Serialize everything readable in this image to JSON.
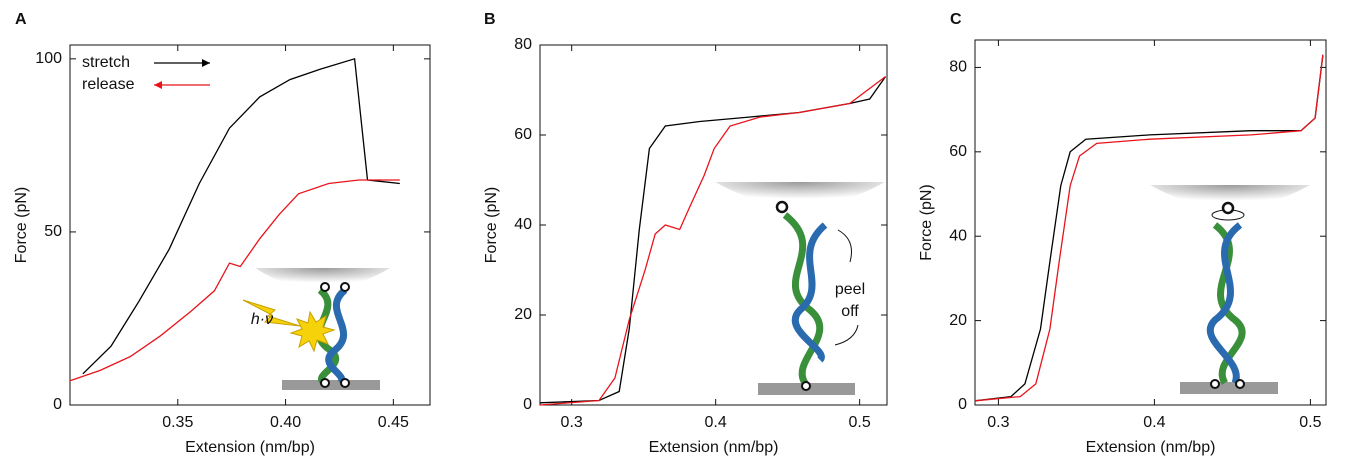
{
  "chart_data": [
    {
      "type": "line",
      "label": "A",
      "xlabel": "Extension (nm/bp)",
      "ylabel": "Force (pN)",
      "xlim": [
        0.3,
        0.467
      ],
      "ylim": [
        0,
        104
      ],
      "xticks": [
        0.35,
        {
          "value": 0.4,
          "label": "0.40"
        },
        0.45
      ],
      "yticks": [
        0,
        50,
        100
      ],
      "legend": "upper left",
      "annotations": [
        "h·ν"
      ],
      "series": [
        {
          "name": "stretch",
          "color": "#000000",
          "x": [
            0.306,
            0.319,
            0.332,
            0.346,
            0.36,
            0.374,
            0.388,
            0.402,
            0.416,
            0.432,
            0.438,
            0.453
          ],
          "values": [
            9,
            17,
            30,
            45,
            64,
            80,
            89,
            94,
            97,
            100,
            65,
            64
          ]
        },
        {
          "name": "release",
          "color": "#e8141c",
          "x": [
            0.3,
            0.314,
            0.328,
            0.342,
            0.356,
            0.367,
            0.374,
            0.379,
            0.388,
            0.397,
            0.406,
            0.42,
            0.434,
            0.453
          ],
          "values": [
            7,
            10,
            14,
            20,
            27,
            33,
            41,
            40,
            48,
            55,
            61,
            64,
            65,
            65
          ]
        }
      ]
    },
    {
      "type": "line",
      "label": "B",
      "xlabel": "Extension (nm/bp)",
      "ylabel": "Force (pN)",
      "xlim": [
        0.278,
        0.519
      ],
      "ylim": [
        0,
        80
      ],
      "xticks": [
        0.3,
        0.4,
        0.5
      ],
      "yticks": [
        0,
        20,
        40,
        60,
        80
      ],
      "annotations": [
        "peel",
        "off"
      ],
      "series": [
        {
          "color": "#000000",
          "x": [
            0.278,
            0.319,
            0.333,
            0.34,
            0.347,
            0.354,
            0.365,
            0.389,
            0.424,
            0.458,
            0.493,
            0.507,
            0.518
          ],
          "values": [
            0.5,
            1,
            3,
            17,
            39,
            57,
            62,
            63,
            64,
            65,
            67,
            68,
            73
          ]
        },
        {
          "color": "#e8141c",
          "x": [
            0.278,
            0.319,
            0.33,
            0.34,
            0.351,
            0.358,
            0.365,
            0.375,
            0.382,
            0.392,
            0.399,
            0.41,
            0.431,
            0.458,
            0.493,
            0.518
          ],
          "values": [
            0,
            1,
            6,
            19,
            30,
            38,
            40,
            39,
            44,
            51,
            57,
            62,
            64,
            65,
            67,
            73
          ]
        }
      ]
    },
    {
      "type": "line",
      "label": "C",
      "xlabel": "Extension (nm/bp)",
      "ylabel": "Force (pN)",
      "xlim": [
        0.285,
        0.51
      ],
      "ylim": [
        0,
        86.5
      ],
      "xticks": [
        0.3,
        0.4,
        0.5
      ],
      "yticks": [
        0,
        20,
        40,
        60,
        80
      ],
      "series": [
        {
          "color": "#000000",
          "x": [
            0.285,
            0.308,
            0.317,
            0.327,
            0.333,
            0.34,
            0.346,
            0.356,
            0.397,
            0.462,
            0.494,
            0.503,
            0.508
          ],
          "values": [
            1,
            2,
            5,
            18,
            34,
            52,
            60,
            63,
            64,
            65,
            65,
            68,
            83
          ]
        },
        {
          "color": "#e8141c",
          "x": [
            0.285,
            0.314,
            0.324,
            0.333,
            0.339,
            0.346,
            0.352,
            0.363,
            0.397,
            0.462,
            0.494,
            0.503,
            0.508
          ],
          "values": [
            1,
            2,
            5,
            18,
            34,
            52,
            59,
            62,
            63,
            64,
            65,
            68,
            83
          ]
        }
      ]
    }
  ]
}
